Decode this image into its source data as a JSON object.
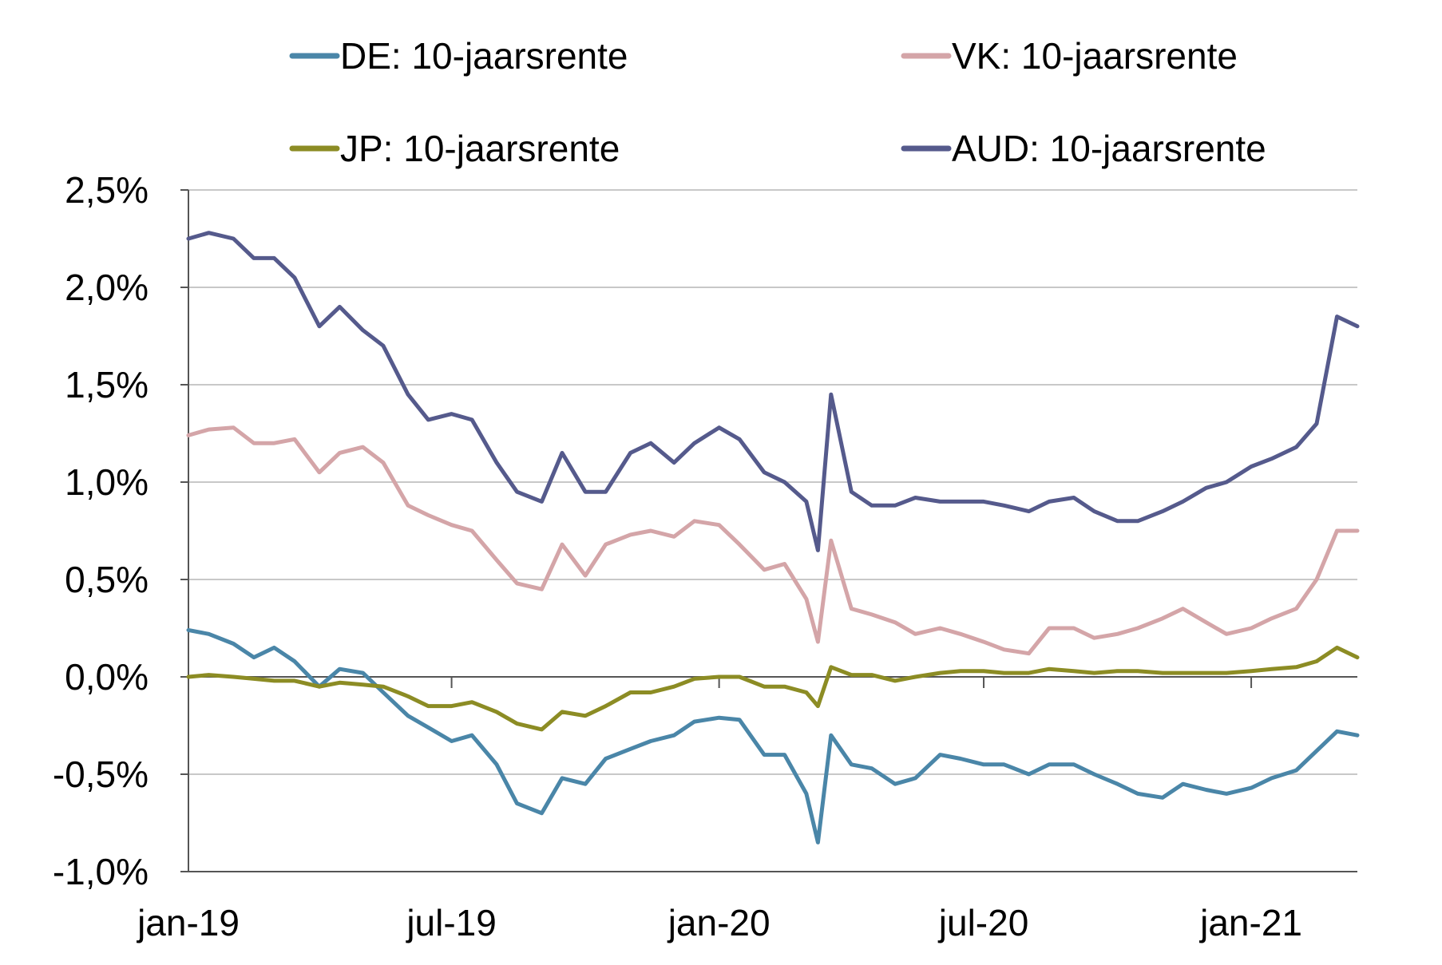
{
  "chart_data": {
    "type": "line",
    "title": "",
    "xlabel": "",
    "ylabel": "",
    "xlim": [
      "2019-01-01",
      "2021-03-15"
    ],
    "ylim": [
      -1.0,
      2.5
    ],
    "y_unit": "%",
    "y_ticks": [
      {
        "value": 2.5,
        "label": "2,5%"
      },
      {
        "value": 2.0,
        "label": "2,0%"
      },
      {
        "value": 1.5,
        "label": "1,5%"
      },
      {
        "value": 1.0,
        "label": "1,0%"
      },
      {
        "value": 0.5,
        "label": "0,5%"
      },
      {
        "value": 0.0,
        "label": "0,0%"
      },
      {
        "value": -0.5,
        "label": "-0,5%"
      },
      {
        "value": -1.0,
        "label": "-1,0%"
      }
    ],
    "x_ticks": [
      {
        "date": "2019-01-01",
        "label": "jan-19"
      },
      {
        "date": "2019-07-01",
        "label": "jul-19"
      },
      {
        "date": "2020-01-01",
        "label": "jan-20"
      },
      {
        "date": "2020-07-01",
        "label": "jul-20"
      },
      {
        "date": "2021-01-01",
        "label": "jan-21"
      }
    ],
    "grid": "horizontal",
    "legend_position": "top",
    "series": [
      {
        "name": "DE: 10-jaarsrente",
        "color": "#4A86A8",
        "points": [
          [
            "2019-01-01",
            0.24
          ],
          [
            "2019-01-15",
            0.22
          ],
          [
            "2019-02-01",
            0.17
          ],
          [
            "2019-02-15",
            0.1
          ],
          [
            "2019-03-01",
            0.15
          ],
          [
            "2019-03-15",
            0.08
          ],
          [
            "2019-04-01",
            -0.05
          ],
          [
            "2019-04-15",
            0.04
          ],
          [
            "2019-05-01",
            0.02
          ],
          [
            "2019-05-15",
            -0.08
          ],
          [
            "2019-06-01",
            -0.2
          ],
          [
            "2019-06-15",
            -0.26
          ],
          [
            "2019-07-01",
            -0.33
          ],
          [
            "2019-07-15",
            -0.3
          ],
          [
            "2019-08-01",
            -0.45
          ],
          [
            "2019-08-15",
            -0.65
          ],
          [
            "2019-09-01",
            -0.7
          ],
          [
            "2019-09-15",
            -0.52
          ],
          [
            "2019-10-01",
            -0.55
          ],
          [
            "2019-10-15",
            -0.42
          ],
          [
            "2019-11-01",
            -0.37
          ],
          [
            "2019-11-15",
            -0.33
          ],
          [
            "2019-12-01",
            -0.3
          ],
          [
            "2019-12-15",
            -0.23
          ],
          [
            "2020-01-01",
            -0.21
          ],
          [
            "2020-01-15",
            -0.22
          ],
          [
            "2020-02-01",
            -0.4
          ],
          [
            "2020-02-15",
            -0.4
          ],
          [
            "2020-03-01",
            -0.6
          ],
          [
            "2020-03-09",
            -0.85
          ],
          [
            "2020-03-18",
            -0.3
          ],
          [
            "2020-04-01",
            -0.45
          ],
          [
            "2020-04-15",
            -0.47
          ],
          [
            "2020-05-01",
            -0.55
          ],
          [
            "2020-05-15",
            -0.52
          ],
          [
            "2020-06-01",
            -0.4
          ],
          [
            "2020-06-15",
            -0.42
          ],
          [
            "2020-07-01",
            -0.45
          ],
          [
            "2020-07-15",
            -0.45
          ],
          [
            "2020-08-01",
            -0.5
          ],
          [
            "2020-08-15",
            -0.45
          ],
          [
            "2020-09-01",
            -0.45
          ],
          [
            "2020-09-15",
            -0.5
          ],
          [
            "2020-10-01",
            -0.55
          ],
          [
            "2020-10-15",
            -0.6
          ],
          [
            "2020-11-01",
            -0.62
          ],
          [
            "2020-11-15",
            -0.55
          ],
          [
            "2020-12-01",
            -0.58
          ],
          [
            "2020-12-15",
            -0.6
          ],
          [
            "2021-01-01",
            -0.57
          ],
          [
            "2021-01-15",
            -0.52
          ],
          [
            "2021-02-01",
            -0.48
          ],
          [
            "2021-02-15",
            -0.38
          ],
          [
            "2021-03-01",
            -0.28
          ],
          [
            "2021-03-15",
            -0.3
          ]
        ]
      },
      {
        "name": "VK: 10-jaarsrente",
        "color": "#D4A5A8",
        "points": [
          [
            "2019-01-01",
            1.24
          ],
          [
            "2019-01-15",
            1.27
          ],
          [
            "2019-02-01",
            1.28
          ],
          [
            "2019-02-15",
            1.2
          ],
          [
            "2019-03-01",
            1.2
          ],
          [
            "2019-03-15",
            1.22
          ],
          [
            "2019-04-01",
            1.05
          ],
          [
            "2019-04-15",
            1.15
          ],
          [
            "2019-05-01",
            1.18
          ],
          [
            "2019-05-15",
            1.1
          ],
          [
            "2019-06-01",
            0.88
          ],
          [
            "2019-06-15",
            0.83
          ],
          [
            "2019-07-01",
            0.78
          ],
          [
            "2019-07-15",
            0.75
          ],
          [
            "2019-08-01",
            0.6
          ],
          [
            "2019-08-15",
            0.48
          ],
          [
            "2019-09-01",
            0.45
          ],
          [
            "2019-09-15",
            0.68
          ],
          [
            "2019-10-01",
            0.52
          ],
          [
            "2019-10-15",
            0.68
          ],
          [
            "2019-11-01",
            0.73
          ],
          [
            "2019-11-15",
            0.75
          ],
          [
            "2019-12-01",
            0.72
          ],
          [
            "2019-12-15",
            0.8
          ],
          [
            "2020-01-01",
            0.78
          ],
          [
            "2020-01-15",
            0.68
          ],
          [
            "2020-02-01",
            0.55
          ],
          [
            "2020-02-15",
            0.58
          ],
          [
            "2020-03-01",
            0.4
          ],
          [
            "2020-03-09",
            0.18
          ],
          [
            "2020-03-18",
            0.7
          ],
          [
            "2020-04-01",
            0.35
          ],
          [
            "2020-04-15",
            0.32
          ],
          [
            "2020-05-01",
            0.28
          ],
          [
            "2020-05-15",
            0.22
          ],
          [
            "2020-06-01",
            0.25
          ],
          [
            "2020-06-15",
            0.22
          ],
          [
            "2020-07-01",
            0.18
          ],
          [
            "2020-07-15",
            0.14
          ],
          [
            "2020-08-01",
            0.12
          ],
          [
            "2020-08-15",
            0.25
          ],
          [
            "2020-09-01",
            0.25
          ],
          [
            "2020-09-15",
            0.2
          ],
          [
            "2020-10-01",
            0.22
          ],
          [
            "2020-10-15",
            0.25
          ],
          [
            "2020-11-01",
            0.3
          ],
          [
            "2020-11-15",
            0.35
          ],
          [
            "2020-12-01",
            0.28
          ],
          [
            "2020-12-15",
            0.22
          ],
          [
            "2021-01-01",
            0.25
          ],
          [
            "2021-01-15",
            0.3
          ],
          [
            "2021-02-01",
            0.35
          ],
          [
            "2021-02-15",
            0.5
          ],
          [
            "2021-03-01",
            0.75
          ],
          [
            "2021-03-15",
            0.75
          ]
        ]
      },
      {
        "name": "JP: 10-jaarsrente",
        "color": "#8C8C24",
        "points": [
          [
            "2019-01-01",
            0.0
          ],
          [
            "2019-01-15",
            0.01
          ],
          [
            "2019-02-01",
            0.0
          ],
          [
            "2019-02-15",
            -0.01
          ],
          [
            "2019-03-01",
            -0.02
          ],
          [
            "2019-03-15",
            -0.02
          ],
          [
            "2019-04-01",
            -0.05
          ],
          [
            "2019-04-15",
            -0.03
          ],
          [
            "2019-05-01",
            -0.04
          ],
          [
            "2019-05-15",
            -0.05
          ],
          [
            "2019-06-01",
            -0.1
          ],
          [
            "2019-06-15",
            -0.15
          ],
          [
            "2019-07-01",
            -0.15
          ],
          [
            "2019-07-15",
            -0.13
          ],
          [
            "2019-08-01",
            -0.18
          ],
          [
            "2019-08-15",
            -0.24
          ],
          [
            "2019-09-01",
            -0.27
          ],
          [
            "2019-09-15",
            -0.18
          ],
          [
            "2019-10-01",
            -0.2
          ],
          [
            "2019-10-15",
            -0.15
          ],
          [
            "2019-11-01",
            -0.08
          ],
          [
            "2019-11-15",
            -0.08
          ],
          [
            "2019-12-01",
            -0.05
          ],
          [
            "2019-12-15",
            -0.01
          ],
          [
            "2020-01-01",
            0.0
          ],
          [
            "2020-01-15",
            0.0
          ],
          [
            "2020-02-01",
            -0.05
          ],
          [
            "2020-02-15",
            -0.05
          ],
          [
            "2020-03-01",
            -0.08
          ],
          [
            "2020-03-09",
            -0.15
          ],
          [
            "2020-03-18",
            0.05
          ],
          [
            "2020-04-01",
            0.01
          ],
          [
            "2020-04-15",
            0.01
          ],
          [
            "2020-05-01",
            -0.02
          ],
          [
            "2020-05-15",
            0.0
          ],
          [
            "2020-06-01",
            0.02
          ],
          [
            "2020-06-15",
            0.03
          ],
          [
            "2020-07-01",
            0.03
          ],
          [
            "2020-07-15",
            0.02
          ],
          [
            "2020-08-01",
            0.02
          ],
          [
            "2020-08-15",
            0.04
          ],
          [
            "2020-09-01",
            0.03
          ],
          [
            "2020-09-15",
            0.02
          ],
          [
            "2020-10-01",
            0.03
          ],
          [
            "2020-10-15",
            0.03
          ],
          [
            "2020-11-01",
            0.02
          ],
          [
            "2020-11-15",
            0.02
          ],
          [
            "2020-12-01",
            0.02
          ],
          [
            "2020-12-15",
            0.02
          ],
          [
            "2021-01-01",
            0.03
          ],
          [
            "2021-01-15",
            0.04
          ],
          [
            "2021-02-01",
            0.05
          ],
          [
            "2021-02-15",
            0.08
          ],
          [
            "2021-03-01",
            0.15
          ],
          [
            "2021-03-15",
            0.1
          ]
        ]
      },
      {
        "name": "AUD: 10-jaarsrente",
        "color": "#555A8C",
        "points": [
          [
            "2019-01-01",
            2.25
          ],
          [
            "2019-01-15",
            2.28
          ],
          [
            "2019-02-01",
            2.25
          ],
          [
            "2019-02-15",
            2.15
          ],
          [
            "2019-03-01",
            2.15
          ],
          [
            "2019-03-15",
            2.05
          ],
          [
            "2019-04-01",
            1.8
          ],
          [
            "2019-04-15",
            1.9
          ],
          [
            "2019-05-01",
            1.78
          ],
          [
            "2019-05-15",
            1.7
          ],
          [
            "2019-06-01",
            1.45
          ],
          [
            "2019-06-15",
            1.32
          ],
          [
            "2019-07-01",
            1.35
          ],
          [
            "2019-07-15",
            1.32
          ],
          [
            "2019-08-01",
            1.1
          ],
          [
            "2019-08-15",
            0.95
          ],
          [
            "2019-09-01",
            0.9
          ],
          [
            "2019-09-15",
            1.15
          ],
          [
            "2019-10-01",
            0.95
          ],
          [
            "2019-10-15",
            0.95
          ],
          [
            "2019-11-01",
            1.15
          ],
          [
            "2019-11-15",
            1.2
          ],
          [
            "2019-12-01",
            1.1
          ],
          [
            "2019-12-15",
            1.2
          ],
          [
            "2020-01-01",
            1.28
          ],
          [
            "2020-01-15",
            1.22
          ],
          [
            "2020-02-01",
            1.05
          ],
          [
            "2020-02-15",
            1.0
          ],
          [
            "2020-03-01",
            0.9
          ],
          [
            "2020-03-09",
            0.65
          ],
          [
            "2020-03-18",
            1.45
          ],
          [
            "2020-04-01",
            0.95
          ],
          [
            "2020-04-15",
            0.88
          ],
          [
            "2020-05-01",
            0.88
          ],
          [
            "2020-05-15",
            0.92
          ],
          [
            "2020-06-01",
            0.9
          ],
          [
            "2020-06-15",
            0.9
          ],
          [
            "2020-07-01",
            0.9
          ],
          [
            "2020-07-15",
            0.88
          ],
          [
            "2020-08-01",
            0.85
          ],
          [
            "2020-08-15",
            0.9
          ],
          [
            "2020-09-01",
            0.92
          ],
          [
            "2020-09-15",
            0.85
          ],
          [
            "2020-10-01",
            0.8
          ],
          [
            "2020-10-15",
            0.8
          ],
          [
            "2020-11-01",
            0.85
          ],
          [
            "2020-11-15",
            0.9
          ],
          [
            "2020-12-01",
            0.97
          ],
          [
            "2020-12-15",
            1.0
          ],
          [
            "2021-01-01",
            1.08
          ],
          [
            "2021-01-15",
            1.12
          ],
          [
            "2021-02-01",
            1.18
          ],
          [
            "2021-02-15",
            1.3
          ],
          [
            "2021-03-01",
            1.85
          ],
          [
            "2021-03-15",
            1.8
          ]
        ]
      }
    ]
  }
}
